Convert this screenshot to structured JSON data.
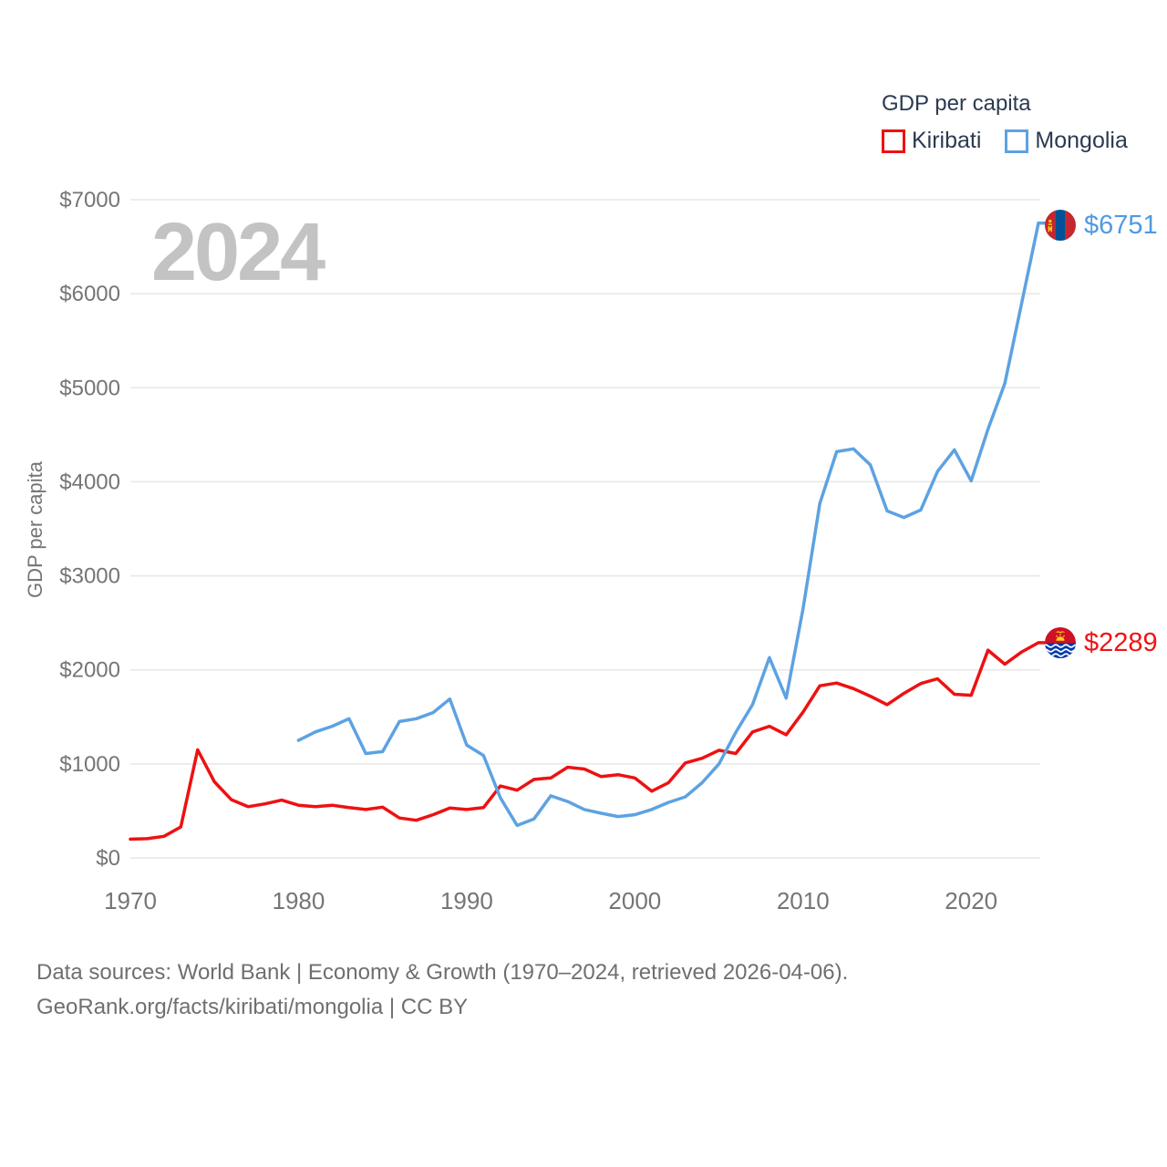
{
  "legend": {
    "title": "GDP per capita",
    "items": [
      {
        "label": "Kiribati",
        "color": "#ee1111"
      },
      {
        "label": "Mongolia",
        "color": "#5da2e2"
      }
    ]
  },
  "watermark": "2024",
  "colors": {
    "kiribati": "#ee1111",
    "mongolia": "#5da2e2",
    "grid": "#e7e7e7",
    "axis_text": "#757575",
    "watermark": "#c3c3c3",
    "legend_text": "#2b3a50",
    "footer_text": "#6f6f6f"
  },
  "chart_data": {
    "type": "line",
    "title": "GDP per capita",
    "xlabel": "",
    "ylabel": "GDP per capita",
    "xlim": [
      1970,
      2024
    ],
    "ylim": [
      0,
      7000
    ],
    "grid": "horizontal-only",
    "legend_position": "top-right",
    "x_ticks": [
      1970,
      1980,
      1990,
      2000,
      2010,
      2020
    ],
    "y_ticks": [
      0,
      1000,
      2000,
      3000,
      4000,
      5000,
      6000,
      7000
    ],
    "y_tick_labels": [
      "$0",
      "$1000",
      "$2000",
      "$3000",
      "$4000",
      "$5000",
      "$6000",
      "$7000"
    ],
    "series": [
      {
        "name": "Kiribati",
        "color": "#ee1111",
        "end_label": "$2289",
        "end_value": 2289,
        "x": [
          1970,
          1971,
          1972,
          1973,
          1974,
          1975,
          1976,
          1977,
          1978,
          1979,
          1980,
          1981,
          1982,
          1983,
          1984,
          1985,
          1986,
          1987,
          1988,
          1989,
          1990,
          1991,
          1992,
          1993,
          1994,
          1995,
          1996,
          1997,
          1998,
          1999,
          2000,
          2001,
          2002,
          2003,
          2004,
          2005,
          2006,
          2007,
          2008,
          2009,
          2010,
          2011,
          2012,
          2013,
          2014,
          2015,
          2016,
          2017,
          2018,
          2019,
          2020,
          2021,
          2022,
          2023,
          2024
        ],
        "values": [
          200,
          205,
          230,
          330,
          1150,
          810,
          620,
          545,
          575,
          615,
          560,
          545,
          560,
          535,
          515,
          540,
          425,
          400,
          460,
          530,
          515,
          535,
          765,
          720,
          835,
          850,
          965,
          945,
          865,
          885,
          850,
          710,
          800,
          1010,
          1060,
          1145,
          1110,
          1340,
          1400,
          1310,
          1550,
          1830,
          1860,
          1800,
          1720,
          1630,
          1750,
          1855,
          1905,
          1740,
          1730,
          2210,
          2060,
          2190,
          2289
        ]
      },
      {
        "name": "Mongolia",
        "color": "#5da2e2",
        "end_label": "$6751",
        "end_value": 6751,
        "x": [
          1980,
          1981,
          1982,
          1983,
          1984,
          1985,
          1986,
          1987,
          1988,
          1989,
          1990,
          1991,
          1992,
          1993,
          1994,
          1995,
          1996,
          1997,
          1998,
          1999,
          2000,
          2001,
          2002,
          2003,
          2004,
          2005,
          2006,
          2007,
          2008,
          2009,
          2010,
          2011,
          2012,
          2013,
          2014,
          2015,
          2016,
          2017,
          2018,
          2019,
          2020,
          2021,
          2022,
          2023,
          2024
        ],
        "values": [
          1250,
          1340,
          1400,
          1480,
          1110,
          1130,
          1450,
          1480,
          1545,
          1690,
          1200,
          1090,
          640,
          345,
          415,
          660,
          600,
          515,
          475,
          440,
          460,
          515,
          590,
          650,
          800,
          1000,
          1335,
          1630,
          2130,
          1700,
          2650,
          3770,
          4320,
          4350,
          4180,
          3690,
          3620,
          3700,
          4110,
          4340,
          4010,
          4560,
          5045,
          5900,
          6751
        ]
      }
    ]
  },
  "footer": {
    "line1": "Data sources: World Bank | Economy & Growth (1970–2024, retrieved 2026-04-06).",
    "line2": "GeoRank.org/facts/kiribati/mongolia | CC BY"
  }
}
